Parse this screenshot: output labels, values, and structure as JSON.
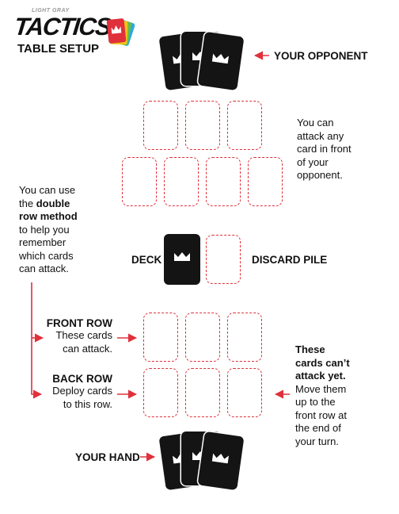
{
  "brand": {
    "subtitle": "LIGHT GRAY",
    "title": "TACTICS",
    "heading": "TABLE SETUP",
    "colors": [
      "#2ba9e0",
      "#6cbb46",
      "#f0c419",
      "#e0303b"
    ]
  },
  "labels": {
    "opponent": "YOUR OPPONENT",
    "deck": "DECK",
    "discard": "DISCARD PILE",
    "hand": "YOUR HAND",
    "front_row_title": "FRONT ROW",
    "front_row_l1": "These cards",
    "front_row_l2": "can attack.",
    "back_row_title": "BACK ROW",
    "back_row_l1": "Deploy cards",
    "back_row_l2": "to this row."
  },
  "notes": {
    "attack": [
      "You can",
      "attack any",
      "card in front",
      "of your",
      "opponent."
    ],
    "method_l1": "You can use",
    "method_l2_pre": "the ",
    "method_l2_bold": "double",
    "method_l3_bold": "row method",
    "method_l4": "to help you",
    "method_l5": "remember",
    "method_l6": "which cards",
    "method_l7": "can attack.",
    "cant_bold": [
      "These",
      "cards can’t",
      "attack yet."
    ],
    "cant_rest": [
      "Move them",
      "up to the",
      "front row at",
      "the end of",
      "your turn."
    ]
  },
  "colors": {
    "accent": "#e0303b",
    "card": "#141414"
  },
  "icons": {
    "card_emblem": "crown-icon"
  }
}
